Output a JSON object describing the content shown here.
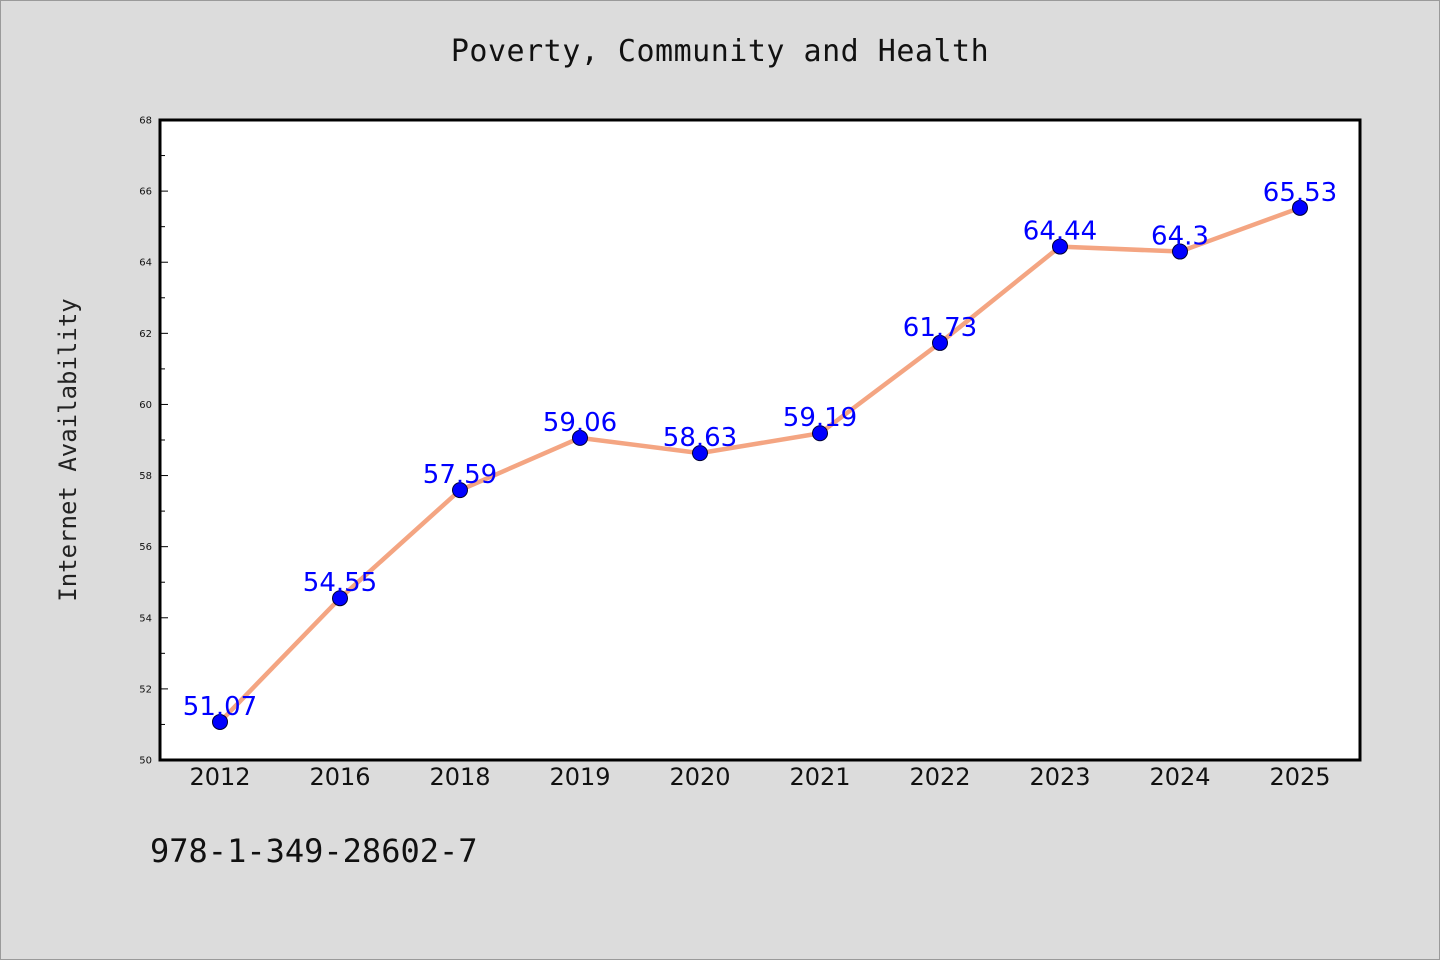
{
  "colors": {
    "background": "#dcdcdc",
    "plot_background": "#ffffff",
    "line": "#f4a582",
    "marker": "#0000ff",
    "data_label": "#0000ff"
  },
  "footer": {
    "text": "978-1-349-28602-7"
  },
  "chart_data": {
    "type": "line",
    "title": "Poverty, Community and Health",
    "xlabel": "",
    "ylabel": "Internet Availability",
    "categories": [
      "2012",
      "2016",
      "2018",
      "2019",
      "2020",
      "2021",
      "2022",
      "2023",
      "2024",
      "2025"
    ],
    "series": [
      {
        "values": [
          51.07,
          54.55,
          57.59,
          59.06,
          58.63,
          59.19,
          61.73,
          64.44,
          64.3,
          65.53
        ],
        "labels": [
          "51.07",
          "54.55",
          "57.59",
          "59.06",
          "58.63",
          "59.19",
          "61.73",
          "64.44",
          "64.3",
          "65.53"
        ]
      }
    ],
    "ylim": [
      50,
      68
    ],
    "yticks": [
      "50",
      "52",
      "54",
      "56",
      "58",
      "60",
      "62",
      "64",
      "66",
      "68"
    ],
    "grid": false,
    "legend": "none"
  }
}
